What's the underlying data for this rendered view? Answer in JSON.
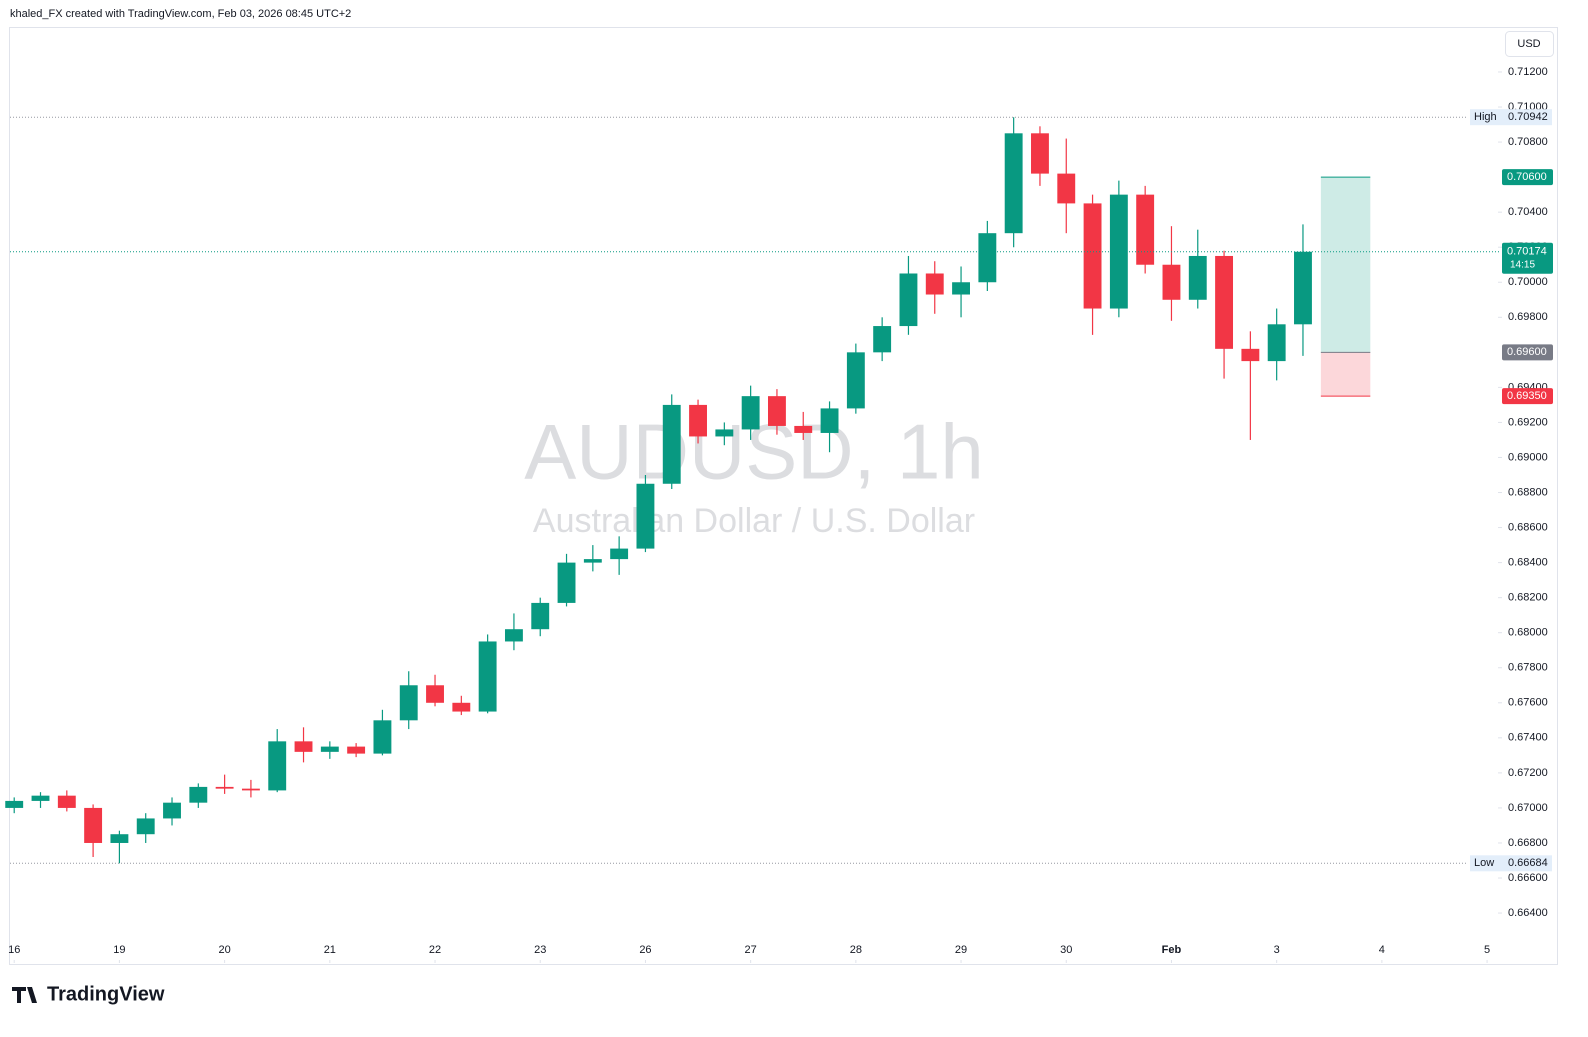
{
  "header": {
    "attribution": "khaled_FX created with TradingView.com, Feb 03, 2026 08:45 UTC+2"
  },
  "footer": {
    "logo": "TradingView"
  },
  "chart_data": {
    "type": "candlestick",
    "title": "AUDUSD, 1h",
    "subtitle": "Australian Dollar / U.S. Dollar",
    "currency": "USD",
    "up_color": "#089981",
    "down_color": "#f23645",
    "x": [
      0,
      0.25,
      0.5,
      0.75,
      1,
      1.25,
      1.5,
      1.75,
      2,
      2.25,
      2.5,
      2.75,
      3,
      3.25,
      3.5,
      3.75,
      4,
      4.25,
      4.5,
      4.75,
      5,
      5.25,
      5.5,
      5.75,
      6,
      6.25,
      6.5,
      6.75,
      7,
      7.25,
      7.5,
      7.75,
      8,
      8.25,
      8.5,
      8.75,
      9,
      9.25,
      9.5,
      9.75,
      10,
      10.25,
      10.5,
      10.75,
      11,
      11.25,
      11.5,
      11.75,
      12,
      12.25
    ],
    "open": [
      0.67,
      0.6704,
      0.6707,
      0.67,
      0.668,
      0.6685,
      0.6694,
      0.6703,
      0.6712,
      0.6711,
      0.671,
      0.6738,
      0.6732,
      0.6735,
      0.6731,
      0.675,
      0.677,
      0.676,
      0.6755,
      0.6795,
      0.6802,
      0.6817,
      0.684,
      0.6842,
      0.6848,
      0.6885,
      0.693,
      0.6912,
      0.6916,
      0.6935,
      0.6918,
      0.6914,
      0.6928,
      0.696,
      0.6975,
      0.7005,
      0.6993,
      0.7,
      0.7028,
      0.7085,
      0.7062,
      0.7045,
      0.6985,
      0.705,
      0.701,
      0.699,
      0.7015,
      0.6962,
      0.6955,
      0.6976
    ],
    "high": [
      0.6706,
      0.6709,
      0.671,
      0.6702,
      0.6687,
      0.6697,
      0.6706,
      0.6714,
      0.6719,
      0.6716,
      0.6745,
      0.6746,
      0.6738,
      0.6737,
      0.6756,
      0.6778,
      0.6776,
      0.6764,
      0.6799,
      0.6811,
      0.682,
      0.6845,
      0.685,
      0.6855,
      0.689,
      0.6936,
      0.6933,
      0.692,
      0.6941,
      0.6939,
      0.6926,
      0.6932,
      0.6965,
      0.698,
      0.7015,
      0.7012,
      0.7009,
      0.7035,
      0.70942,
      0.7089,
      0.7082,
      0.705,
      0.7058,
      0.7055,
      0.7032,
      0.703,
      0.7018,
      0.6972,
      0.6985,
      0.7033
    ],
    "low": [
      0.6697,
      0.67,
      0.6698,
      0.6672,
      0.66684,
      0.668,
      0.669,
      0.67,
      0.6708,
      0.6706,
      0.6709,
      0.6726,
      0.6728,
      0.6729,
      0.673,
      0.6745,
      0.6758,
      0.6753,
      0.6754,
      0.679,
      0.6798,
      0.6815,
      0.6835,
      0.6833,
      0.6846,
      0.6882,
      0.6908,
      0.6907,
      0.691,
      0.6913,
      0.691,
      0.6903,
      0.6925,
      0.6955,
      0.697,
      0.6982,
      0.698,
      0.6995,
      0.702,
      0.7055,
      0.7028,
      0.697,
      0.698,
      0.7005,
      0.6978,
      0.6985,
      0.6945,
      0.691,
      0.6944,
      0.6958
    ],
    "close": [
      0.6704,
      0.6707,
      0.67,
      0.668,
      0.6685,
      0.6694,
      0.6703,
      0.6712,
      0.6711,
      0.671,
      0.6738,
      0.6732,
      0.6735,
      0.6731,
      0.675,
      0.677,
      0.676,
      0.6755,
      0.6795,
      0.6802,
      0.6817,
      0.684,
      0.6842,
      0.6848,
      0.6885,
      0.693,
      0.6912,
      0.6916,
      0.6935,
      0.6918,
      0.6914,
      0.6928,
      0.696,
      0.6975,
      0.7005,
      0.6993,
      0.7,
      0.7028,
      0.7085,
      0.7062,
      0.7045,
      0.6985,
      0.705,
      0.701,
      0.699,
      0.7015,
      0.6962,
      0.6955,
      0.6976,
      0.70174
    ],
    "xlim": [
      -0.04,
      14.1
    ],
    "xticks": [
      {
        "value": 0,
        "label": "16"
      },
      {
        "value": 1,
        "label": "19"
      },
      {
        "value": 2,
        "label": "20"
      },
      {
        "value": 3,
        "label": "21"
      },
      {
        "value": 4,
        "label": "22"
      },
      {
        "value": 5,
        "label": "23"
      },
      {
        "value": 6,
        "label": "26"
      },
      {
        "value": 7,
        "label": "27"
      },
      {
        "value": 8,
        "label": "28"
      },
      {
        "value": 9,
        "label": "29"
      },
      {
        "value": 10,
        "label": "30"
      },
      {
        "value": 11,
        "label": "Feb"
      },
      {
        "value": 12,
        "label": "3"
      },
      {
        "value": 13,
        "label": "4"
      },
      {
        "value": 14,
        "label": "5"
      }
    ],
    "ylim": [
      0.66115,
      0.71451
    ],
    "yticks": [
      {
        "value": 0.664,
        "label": "0.66400"
      },
      {
        "value": 0.666,
        "label": "0.66600"
      },
      {
        "value": 0.668,
        "label": "0.66800"
      },
      {
        "value": 0.67,
        "label": "0.67000"
      },
      {
        "value": 0.672,
        "label": "0.67200"
      },
      {
        "value": 0.674,
        "label": "0.67400"
      },
      {
        "value": 0.676,
        "label": "0.67600"
      },
      {
        "value": 0.678,
        "label": "0.67800"
      },
      {
        "value": 0.68,
        "label": "0.68000"
      },
      {
        "value": 0.682,
        "label": "0.68200"
      },
      {
        "value": 0.684,
        "label": "0.68400"
      },
      {
        "value": 0.686,
        "label": "0.68600"
      },
      {
        "value": 0.688,
        "label": "0.68800"
      },
      {
        "value": 0.69,
        "label": "0.69000"
      },
      {
        "value": 0.692,
        "label": "0.69200"
      },
      {
        "value": 0.694,
        "label": "0.69400"
      },
      {
        "value": 0.698,
        "label": "0.69800"
      },
      {
        "value": 0.7,
        "label": "0.70000"
      },
      {
        "value": 0.702,
        "label": "0.70200"
      },
      {
        "value": 0.704,
        "label": "0.70400"
      },
      {
        "value": 0.708,
        "label": "0.70800"
      },
      {
        "value": 0.71,
        "label": "0.71000"
      },
      {
        "value": 0.712,
        "label": "0.71200"
      }
    ],
    "high_marker": {
      "label": "High",
      "value": 0.70942,
      "value_label": "0.70942"
    },
    "low_marker": {
      "label": "Low",
      "value": 0.66684,
      "value_label": "0.66684"
    },
    "last_price": {
      "value": 0.70174,
      "label": "0.70174",
      "countdown": "14:15"
    },
    "position": {
      "x": [
        12.42,
        12.89
      ],
      "target": {
        "value": 0.706,
        "label": "0.70600"
      },
      "entry": {
        "value": 0.696,
        "label": "0.69600"
      },
      "stop": {
        "value": 0.6935,
        "label": "0.69350"
      }
    }
  }
}
